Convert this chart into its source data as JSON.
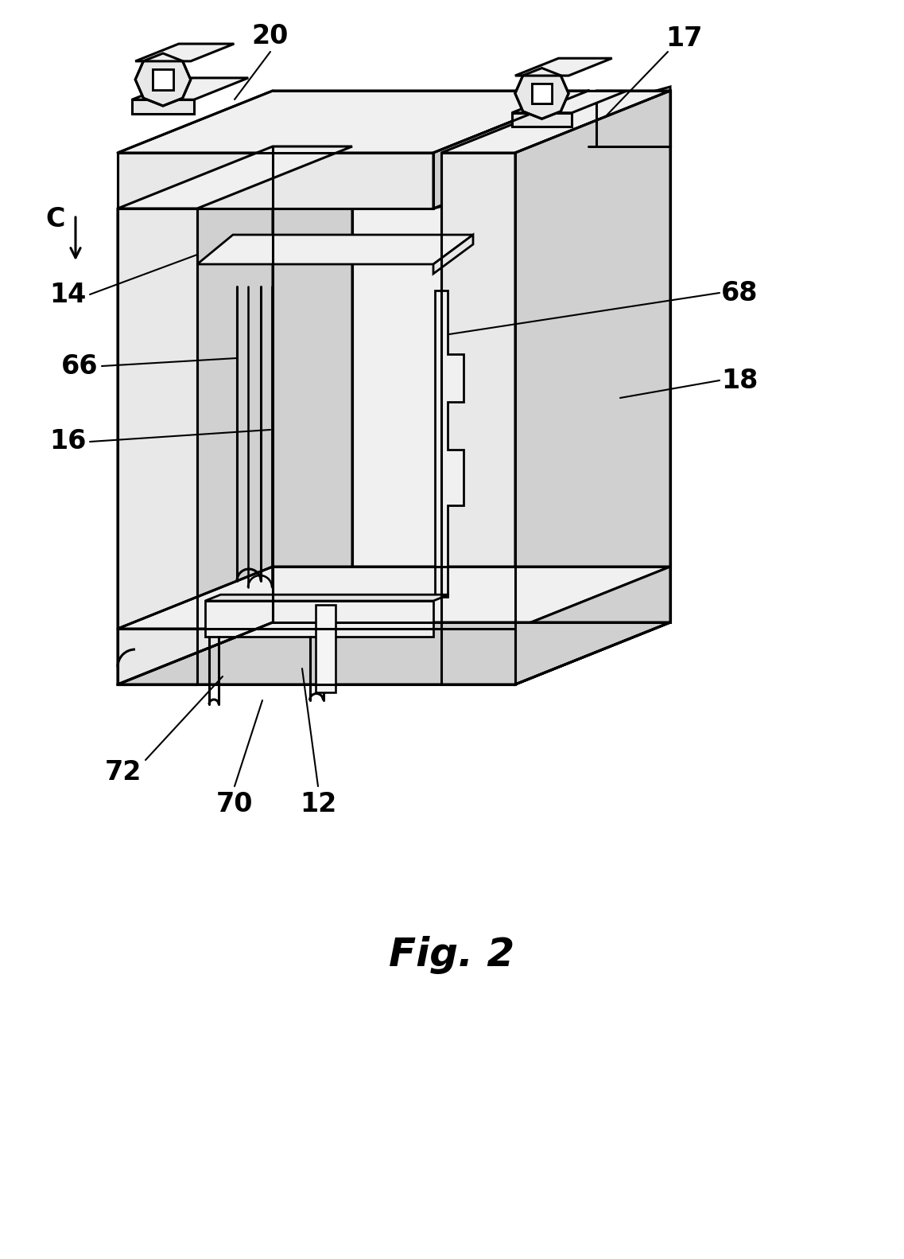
{
  "title": "Fig. 2",
  "title_fontsize": 36,
  "title_fontstyle": "italic",
  "title_fontweight": "bold",
  "background_color": "#ffffff",
  "figsize": [
    11.37,
    15.82
  ],
  "dpi": 100,
  "lw": 2.2,
  "body_fc": "#e8e8e8",
  "body_fc2": "#f0f0f0",
  "body_fc_dark": "#d0d0d0",
  "label_fs": 24,
  "label_fw": "bold"
}
